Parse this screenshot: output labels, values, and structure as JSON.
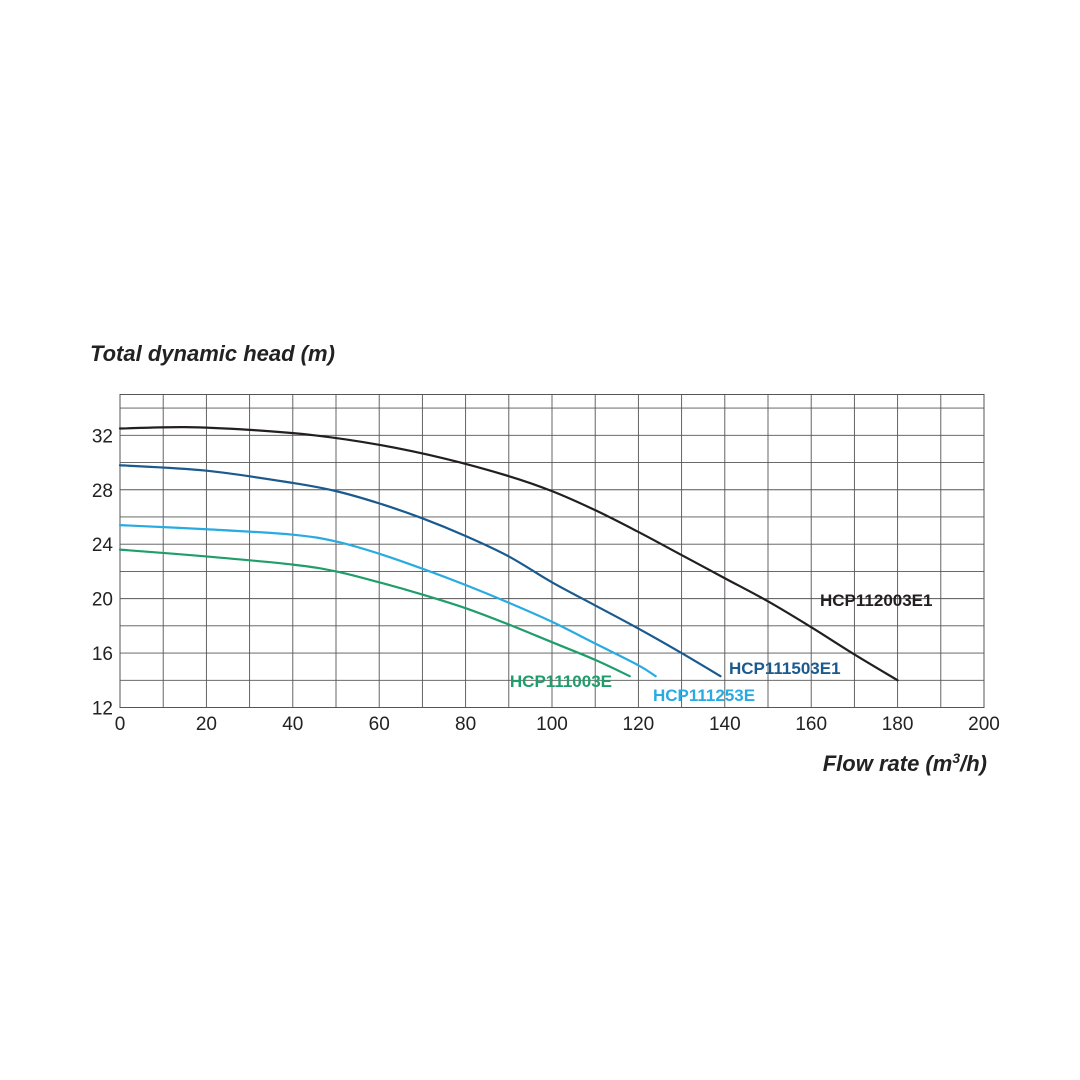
{
  "chart_data": {
    "type": "line",
    "ylabel": "Total dynamic head (m)",
    "xlabel_main": "Flow rate (m",
    "xlabel_sup": "3",
    "xlabel_end": "/h)",
    "xlim": [
      0,
      200
    ],
    "ylim": [
      12,
      35
    ],
    "x_ticks": [
      0,
      20,
      40,
      60,
      80,
      100,
      120,
      140,
      160,
      180,
      200
    ],
    "y_ticks": [
      12,
      16,
      20,
      24,
      28,
      32
    ],
    "x_grid_step": 10,
    "y_grid": [
      12,
      14,
      16,
      18,
      20,
      22,
      24,
      26,
      28,
      30,
      32,
      34,
      35
    ],
    "grid": true,
    "series": [
      {
        "name": "HCP112003E1",
        "color": "#231f20",
        "points": [
          [
            0,
            32.5
          ],
          [
            15,
            32.6
          ],
          [
            30,
            32.4
          ],
          [
            45,
            32.0
          ],
          [
            60,
            31.3
          ],
          [
            75,
            30.3
          ],
          [
            90,
            29.0
          ],
          [
            100,
            27.9
          ],
          [
            110,
            26.5
          ],
          [
            120,
            24.9
          ],
          [
            130,
            23.2
          ],
          [
            140,
            21.5
          ],
          [
            150,
            19.8
          ],
          [
            160,
            17.9
          ],
          [
            170,
            15.9
          ],
          [
            180,
            14.0
          ]
        ]
      },
      {
        "name": "HCP111503E1",
        "color": "#1a5a8f",
        "points": [
          [
            0,
            29.8
          ],
          [
            20,
            29.4
          ],
          [
            40,
            28.5
          ],
          [
            50,
            27.9
          ],
          [
            60,
            27.0
          ],
          [
            70,
            25.9
          ],
          [
            80,
            24.6
          ],
          [
            90,
            23.1
          ],
          [
            100,
            21.2
          ],
          [
            110,
            19.5
          ],
          [
            120,
            17.8
          ],
          [
            130,
            16.0
          ],
          [
            139,
            14.3
          ]
        ]
      },
      {
        "name": "HCP111253E",
        "color": "#29abe2",
        "points": [
          [
            0,
            25.4
          ],
          [
            20,
            25.1
          ],
          [
            40,
            24.7
          ],
          [
            50,
            24.2
          ],
          [
            60,
            23.3
          ],
          [
            70,
            22.2
          ],
          [
            80,
            21.0
          ],
          [
            90,
            19.7
          ],
          [
            100,
            18.3
          ],
          [
            110,
            16.7
          ],
          [
            120,
            15.1
          ],
          [
            124,
            14.3
          ]
        ]
      },
      {
        "name": "HCP111003E",
        "color": "#1f9e6b",
        "points": [
          [
            0,
            23.6
          ],
          [
            20,
            23.1
          ],
          [
            40,
            22.5
          ],
          [
            50,
            22.0
          ],
          [
            60,
            21.2
          ],
          [
            70,
            20.3
          ],
          [
            80,
            19.3
          ],
          [
            90,
            18.1
          ],
          [
            100,
            16.8
          ],
          [
            110,
            15.5
          ],
          [
            118,
            14.3
          ]
        ]
      }
    ]
  }
}
